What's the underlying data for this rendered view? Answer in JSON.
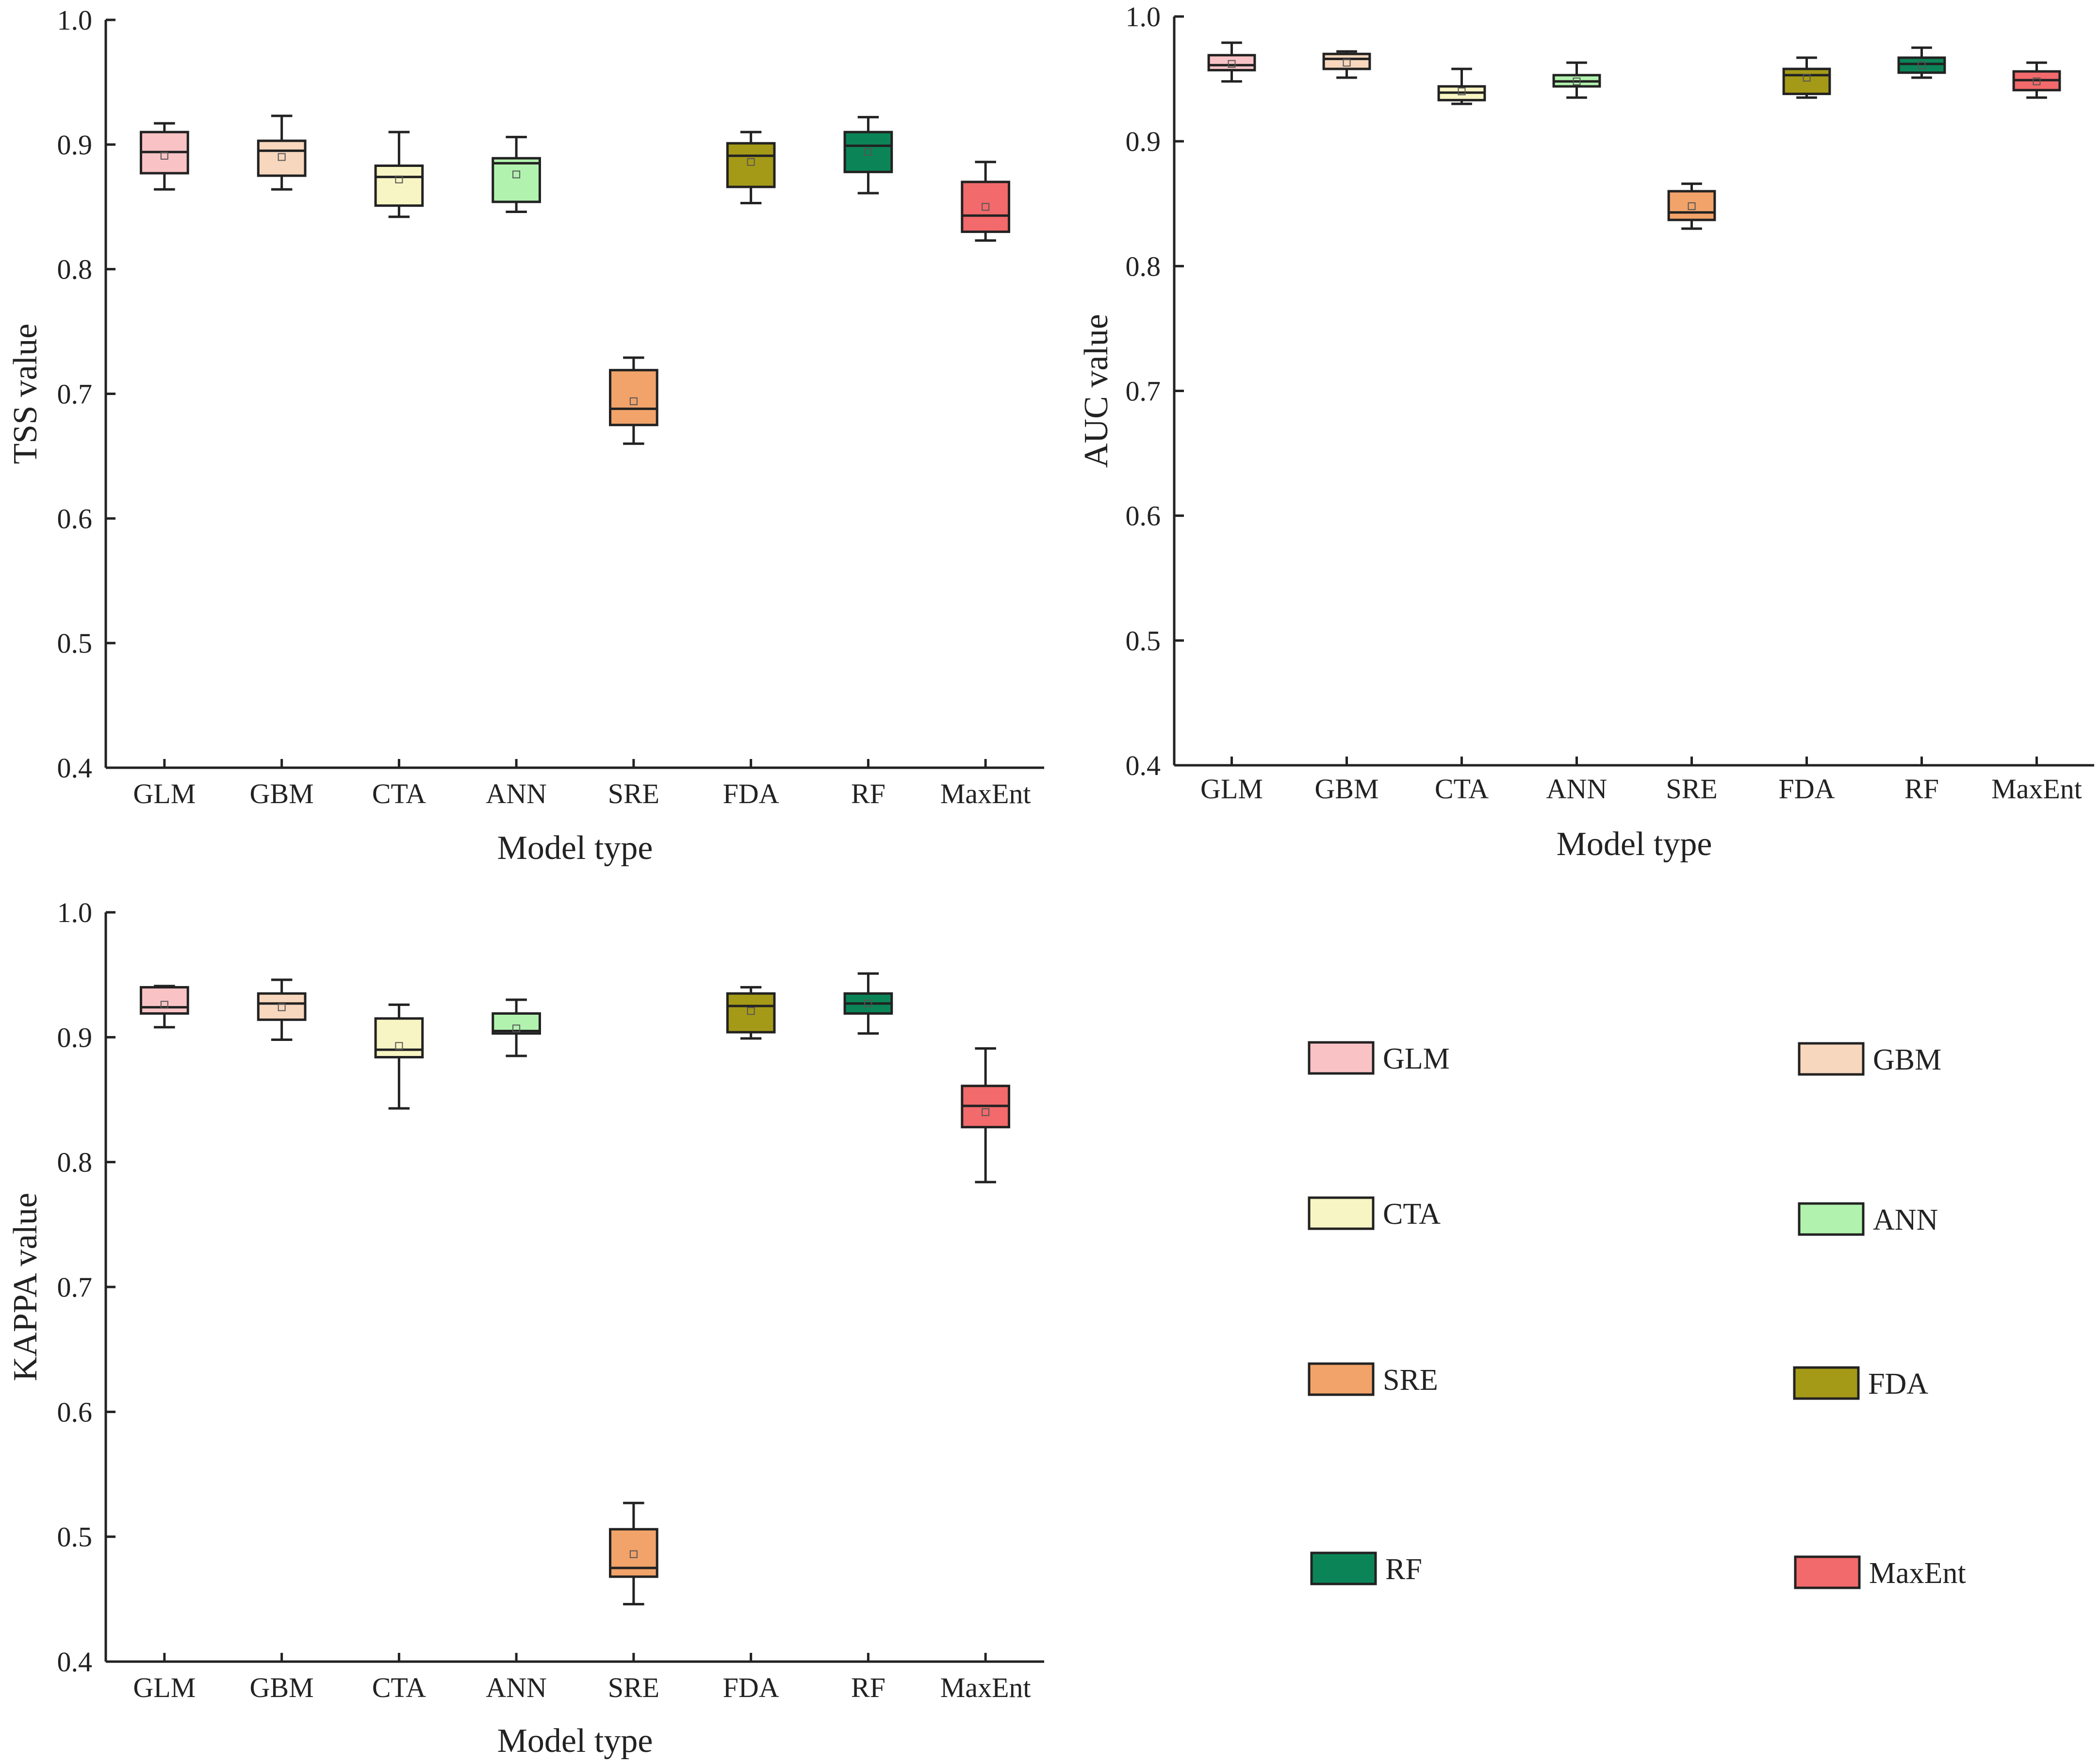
{
  "colors": {
    "GLM": "#f9c3c5",
    "GBM": "#f7d7bd",
    "CTA": "#f8f5c4",
    "ANN": "#b1f3ae",
    "SRE": "#f2a36a",
    "FDA": "#a59a17",
    "RF": "#0b8557",
    "MaxEnt": "#f26a6b",
    "axis": "#222222"
  },
  "chart_data": [
    {
      "type": "boxplot",
      "name": "tss",
      "xlabel": "Model type",
      "ylabel": "TSS value",
      "ylim": [
        0.4,
        1.0
      ],
      "yticks": [
        "0.4",
        "0.5",
        "0.6",
        "0.7",
        "0.8",
        "0.9",
        "1.0"
      ],
      "categories": [
        "GLM",
        "GBM",
        "CTA",
        "ANN",
        "SRE",
        "FDA",
        "RF",
        "MaxEnt"
      ],
      "boxes": [
        {
          "min": 0.864,
          "q1": 0.877,
          "median": 0.894,
          "q3": 0.91,
          "max": 0.917,
          "mean": 0.891
        },
        {
          "min": 0.864,
          "q1": 0.875,
          "median": 0.895,
          "q3": 0.903,
          "max": 0.923,
          "mean": 0.89
        },
        {
          "min": 0.842,
          "q1": 0.851,
          "median": 0.874,
          "q3": 0.883,
          "max": 0.91,
          "mean": 0.872
        },
        {
          "min": 0.846,
          "q1": 0.854,
          "median": 0.885,
          "q3": 0.889,
          "max": 0.906,
          "mean": 0.876
        },
        {
          "min": 0.66,
          "q1": 0.675,
          "median": 0.688,
          "q3": 0.719,
          "max": 0.729,
          "mean": 0.694
        },
        {
          "min": 0.853,
          "q1": 0.866,
          "median": 0.891,
          "q3": 0.901,
          "max": 0.91,
          "mean": 0.886
        },
        {
          "min": 0.861,
          "q1": 0.878,
          "median": 0.899,
          "q3": 0.91,
          "max": 0.922,
          "mean": 0.894
        },
        {
          "min": 0.823,
          "q1": 0.83,
          "median": 0.843,
          "q3": 0.87,
          "max": 0.886,
          "mean": 0.85
        }
      ]
    },
    {
      "type": "boxplot",
      "name": "auc",
      "xlabel": "Model type",
      "ylabel": "AUC value",
      "ylim": [
        0.4,
        1.0
      ],
      "yticks": [
        "0.4",
        "0.5",
        "0.6",
        "0.7",
        "0.8",
        "0.9",
        "1.0"
      ],
      "categories": [
        "GLM",
        "GBM",
        "CTA",
        "ANN",
        "SRE",
        "FDA",
        "RF",
        "MaxEnt"
      ],
      "boxes": [
        {
          "min": 0.948,
          "q1": 0.957,
          "median": 0.961,
          "q3": 0.969,
          "max": 0.979,
          "mean": 0.962
        },
        {
          "min": 0.951,
          "q1": 0.958,
          "median": 0.966,
          "q3": 0.97,
          "max": 0.972,
          "mean": 0.963
        },
        {
          "min": 0.93,
          "q1": 0.933,
          "median": 0.939,
          "q3": 0.944,
          "max": 0.958,
          "mean": 0.94
        },
        {
          "min": 0.935,
          "q1": 0.944,
          "median": 0.948,
          "q3": 0.953,
          "max": 0.963,
          "mean": 0.948
        },
        {
          "min": 0.83,
          "q1": 0.837,
          "median": 0.843,
          "q3": 0.86,
          "max": 0.866,
          "mean": 0.848
        },
        {
          "min": 0.935,
          "q1": 0.938,
          "median": 0.953,
          "q3": 0.958,
          "max": 0.967,
          "mean": 0.951
        },
        {
          "min": 0.951,
          "q1": 0.955,
          "median": 0.962,
          "q3": 0.967,
          "max": 0.975,
          "mean": 0.961
        },
        {
          "min": 0.935,
          "q1": 0.941,
          "median": 0.949,
          "q3": 0.956,
          "max": 0.963,
          "mean": 0.948
        }
      ]
    },
    {
      "type": "boxplot",
      "name": "kappa",
      "xlabel": "Model type",
      "ylabel": "KAPPA value",
      "ylim": [
        0.4,
        1.0
      ],
      "yticks": [
        "0.4",
        "0.5",
        "0.6",
        "0.7",
        "0.8",
        "0.9",
        "1.0"
      ],
      "categories": [
        "GLM",
        "GBM",
        "CTA",
        "ANN",
        "SRE",
        "FDA",
        "RF",
        "MaxEnt"
      ],
      "boxes": [
        {
          "min": 0.908,
          "q1": 0.919,
          "median": 0.924,
          "q3": 0.94,
          "max": 0.941,
          "mean": 0.926
        },
        {
          "min": 0.898,
          "q1": 0.914,
          "median": 0.927,
          "q3": 0.935,
          "max": 0.946,
          "mean": 0.924
        },
        {
          "min": 0.843,
          "q1": 0.884,
          "median": 0.89,
          "q3": 0.915,
          "max": 0.926,
          "mean": 0.893
        },
        {
          "min": 0.885,
          "q1": 0.903,
          "median": 0.905,
          "q3": 0.919,
          "max": 0.93,
          "mean": 0.907
        },
        {
          "min": 0.446,
          "q1": 0.468,
          "median": 0.475,
          "q3": 0.506,
          "max": 0.527,
          "mean": 0.486
        },
        {
          "min": 0.899,
          "q1": 0.904,
          "median": 0.925,
          "q3": 0.935,
          "max": 0.94,
          "mean": 0.921
        },
        {
          "min": 0.903,
          "q1": 0.919,
          "median": 0.927,
          "q3": 0.935,
          "max": 0.951,
          "mean": 0.927
        },
        {
          "min": 0.784,
          "q1": 0.828,
          "median": 0.845,
          "q3": 0.861,
          "max": 0.891,
          "mean": 0.84
        }
      ]
    }
  ],
  "legend": {
    "items": [
      {
        "key": "GLM",
        "label": "GLM"
      },
      {
        "key": "GBM",
        "label": "GBM"
      },
      {
        "key": "CTA",
        "label": "CTA"
      },
      {
        "key": "ANN",
        "label": "ANN"
      },
      {
        "key": "SRE",
        "label": "SRE"
      },
      {
        "key": "FDA",
        "label": "FDA"
      },
      {
        "key": "RF",
        "label": "RF"
      },
      {
        "key": "MaxEnt",
        "label": "MaxEnt"
      }
    ]
  }
}
